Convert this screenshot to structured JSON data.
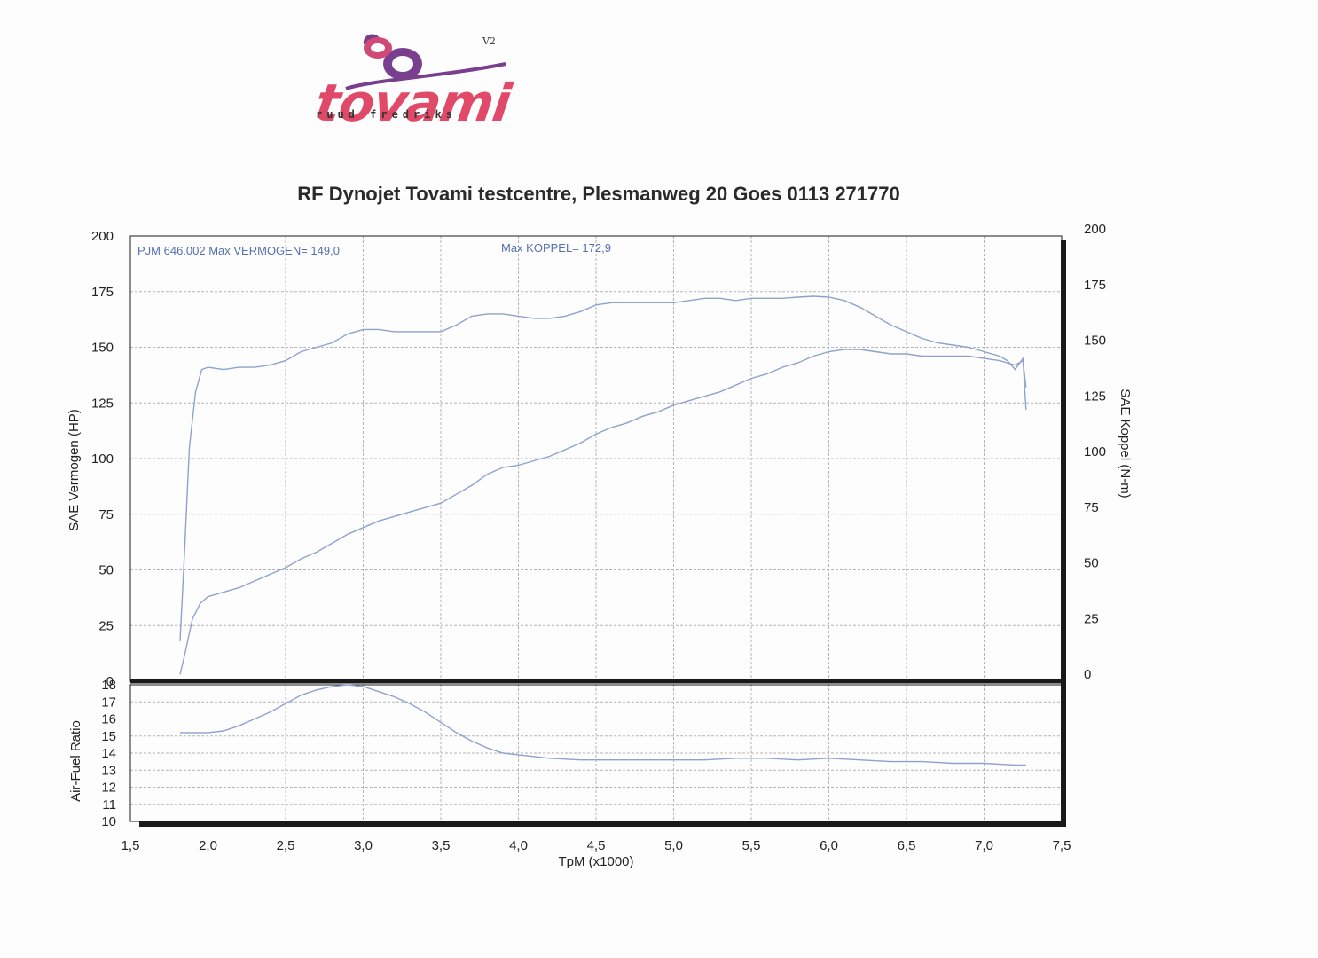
{
  "logo": {
    "word": "tovami",
    "subtitle": "ruud fredriks",
    "version": "V2"
  },
  "colors": {
    "curve": "#8ea2cc",
    "annotation": "#5570b0",
    "grid": "#b5b5b5",
    "frame": "#1a1a1a",
    "logo_pink": "#e04a68",
    "logo_purple": "#7a3e8e"
  },
  "chart_data": [
    {
      "type": "line",
      "title": "RF Dynojet Tovami testcentre, Plesmanweg 20 Goes 0113 271770",
      "xlabel": "TpM (x1000)",
      "ylabel": "SAE Vermogen (HP)",
      "ylabel_right": "SAE Koppel (N-m)",
      "xlim": [
        1.5,
        7.5
      ],
      "ylim": [
        0,
        200
      ],
      "ylim_right": [
        0,
        200
      ],
      "grid": true,
      "x_ticks": [
        "1,5",
        "2,0",
        "2,5",
        "3,0",
        "3,5",
        "4,0",
        "4,5",
        "5,0",
        "5,5",
        "6,0",
        "6,5",
        "7,0",
        "7,5"
      ],
      "y_ticks": [
        "0",
        "25",
        "50",
        "75",
        "100",
        "125",
        "150",
        "175",
        "200"
      ],
      "y_ticks_right": [
        "0",
        "25",
        "50",
        "75",
        "100",
        "125",
        "150",
        "175",
        "200"
      ],
      "annotations": [
        "PJM 646.002  Max VERMOGEN= 149,0",
        "Max KOPPEL= 172,9"
      ],
      "series": [
        {
          "axis": "right",
          "x": [
            1.82,
            1.85,
            1.88,
            1.92,
            1.96,
            2.0,
            2.1,
            2.2,
            2.3,
            2.4,
            2.5,
            2.6,
            2.7,
            2.8,
            2.9,
            3.0,
            3.1,
            3.2,
            3.3,
            3.4,
            3.5,
            3.6,
            3.7,
            3.8,
            3.9,
            4.0,
            4.1,
            4.2,
            4.3,
            4.4,
            4.5,
            4.6,
            4.7,
            4.8,
            4.9,
            5.0,
            5.1,
            5.2,
            5.3,
            5.4,
            5.5,
            5.6,
            5.7,
            5.8,
            5.9,
            6.0,
            6.1,
            6.2,
            6.3,
            6.4,
            6.5,
            6.6,
            6.7,
            6.8,
            6.9,
            7.0,
            7.1,
            7.15,
            7.2,
            7.25,
            7.27
          ],
          "values": [
            18,
            60,
            105,
            130,
            140,
            141,
            140,
            141,
            141,
            142,
            144,
            148,
            150,
            152,
            156,
            158,
            158,
            157,
            157,
            157,
            157,
            160,
            164,
            165,
            165,
            164,
            163,
            163,
            164,
            166,
            169,
            170,
            170,
            170,
            170,
            170,
            171,
            172,
            172,
            171,
            172,
            172,
            172,
            172.5,
            172.9,
            172.5,
            171,
            168,
            164,
            160,
            157,
            154,
            152,
            151,
            150,
            148,
            146,
            144,
            140,
            145,
            122
          ]
        },
        {
          "axis": "left",
          "x": [
            1.82,
            1.85,
            1.9,
            1.95,
            2.0,
            2.1,
            2.2,
            2.3,
            2.4,
            2.5,
            2.6,
            2.7,
            2.8,
            2.9,
            3.0,
            3.1,
            3.2,
            3.3,
            3.4,
            3.5,
            3.6,
            3.7,
            3.8,
            3.9,
            4.0,
            4.1,
            4.2,
            4.3,
            4.4,
            4.5,
            4.6,
            4.7,
            4.8,
            4.9,
            5.0,
            5.1,
            5.2,
            5.3,
            5.4,
            5.5,
            5.6,
            5.7,
            5.8,
            5.9,
            6.0,
            6.1,
            6.2,
            6.3,
            6.4,
            6.5,
            6.6,
            6.7,
            6.8,
            6.9,
            7.0,
            7.1,
            7.15,
            7.2,
            7.25,
            7.27
          ],
          "values": [
            3,
            12,
            28,
            35,
            38,
            40,
            42,
            45,
            48,
            51,
            55,
            58,
            62,
            66,
            69,
            72,
            74,
            76,
            78,
            80,
            84,
            88,
            93,
            96,
            97,
            99,
            101,
            104,
            107,
            111,
            114,
            116,
            119,
            121,
            124,
            126,
            128,
            130,
            133,
            136,
            138,
            141,
            143,
            146,
            148,
            149,
            149,
            148,
            147,
            147,
            146,
            146,
            146,
            146,
            145,
            144,
            143,
            142,
            144,
            132
          ]
        }
      ]
    },
    {
      "type": "line",
      "ylabel": "Air-Fuel Ratio",
      "ylim": [
        10,
        18
      ],
      "xlim": [
        1.5,
        7.5
      ],
      "grid": true,
      "y_ticks": [
        "10",
        "11",
        "12",
        "13",
        "14",
        "15",
        "16",
        "17",
        "18"
      ],
      "series": [
        {
          "x": [
            1.82,
            1.9,
            2.0,
            2.1,
            2.2,
            2.3,
            2.4,
            2.5,
            2.6,
            2.7,
            2.8,
            2.9,
            3.0,
            3.1,
            3.2,
            3.3,
            3.4,
            3.5,
            3.6,
            3.7,
            3.8,
            3.9,
            4.0,
            4.2,
            4.4,
            4.6,
            4.8,
            5.0,
            5.2,
            5.4,
            5.6,
            5.8,
            6.0,
            6.2,
            6.4,
            6.6,
            6.8,
            7.0,
            7.2,
            7.27
          ],
          "values": [
            15.2,
            15.2,
            15.2,
            15.3,
            15.6,
            16.0,
            16.4,
            16.9,
            17.4,
            17.7,
            17.9,
            18.0,
            17.9,
            17.6,
            17.3,
            16.9,
            16.4,
            15.8,
            15.2,
            14.7,
            14.3,
            14.0,
            13.9,
            13.7,
            13.6,
            13.6,
            13.6,
            13.6,
            13.6,
            13.7,
            13.7,
            13.6,
            13.7,
            13.6,
            13.5,
            13.5,
            13.4,
            13.4,
            13.3,
            13.3
          ]
        }
      ]
    }
  ]
}
